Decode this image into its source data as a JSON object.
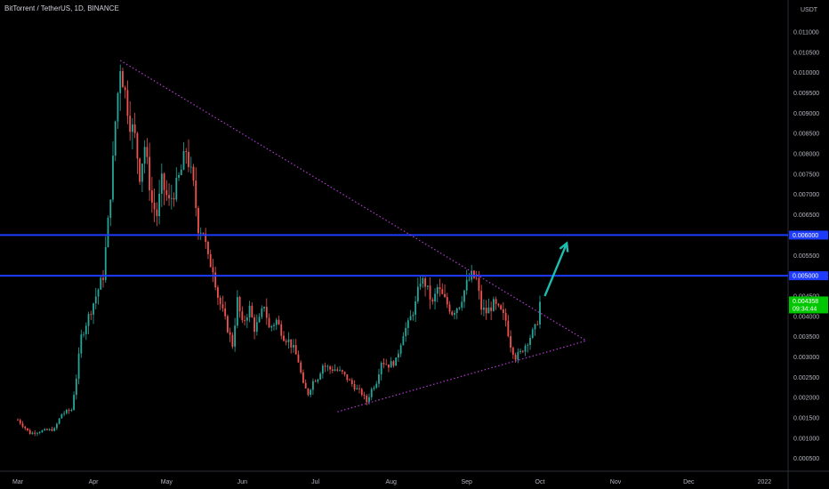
{
  "header": {
    "title": "BitTorrent / TetherUS, 1D, BINANCE"
  },
  "chart_data": {
    "type": "candlestick",
    "symbol": "BitTorrent / TetherUS, 1D, BINANCE",
    "currency_label": "USDT",
    "ylim": [
      0.0001,
      0.0117
    ],
    "yticks": [
      "0.011000",
      "0.010500",
      "0.010000",
      "0.009500",
      "0.009000",
      "0.008500",
      "0.008000",
      "0.007500",
      "0.007000",
      "0.006500",
      "0.006000",
      "0.005500",
      "0.005000",
      "0.004500",
      "0.004000",
      "0.003500",
      "0.003000",
      "0.002500",
      "0.002000",
      "0.001500",
      "0.001000",
      "0.000500"
    ],
    "ytick_values": [
      0.011,
      0.0105,
      0.01,
      0.0095,
      0.009,
      0.0085,
      0.008,
      0.0075,
      0.007,
      0.0065,
      0.006,
      0.0055,
      0.005,
      0.0045,
      0.004,
      0.0035,
      0.003,
      0.0025,
      0.002,
      0.0015,
      0.001,
      0.0005
    ],
    "xticks": [
      {
        "label": "Mar",
        "day": 0
      },
      {
        "label": "Apr",
        "day": 31
      },
      {
        "label": "May",
        "day": 61
      },
      {
        "label": "Jun",
        "day": 92
      },
      {
        "label": "Jul",
        "day": 122
      },
      {
        "label": "Aug",
        "day": 153
      },
      {
        "label": "Sep",
        "day": 184
      },
      {
        "label": "Oct",
        "day": 214
      },
      {
        "label": "Nov",
        "day": 245
      },
      {
        "label": "Dec",
        "day": 275
      },
      {
        "label": "2022",
        "day": 306
      }
    ],
    "xlim_days": [
      0,
      320
    ],
    "price_path": [
      [
        0,
        0.00145
      ],
      [
        5,
        0.00112
      ],
      [
        10,
        0.00118
      ],
      [
        15,
        0.00122
      ],
      [
        18,
        0.0016
      ],
      [
        22,
        0.0017
      ],
      [
        24,
        0.0025
      ],
      [
        26,
        0.0035
      ],
      [
        29,
        0.004
      ],
      [
        32,
        0.0045
      ],
      [
        35,
        0.005
      ],
      [
        37,
        0.0063
      ],
      [
        39,
        0.0078
      ],
      [
        40,
        0.0088
      ],
      [
        42,
        0.0102
      ],
      [
        44,
        0.0095
      ],
      [
        46,
        0.0088
      ],
      [
        48,
        0.0084
      ],
      [
        50,
        0.0075
      ],
      [
        52,
        0.0082
      ],
      [
        55,
        0.0068
      ],
      [
        57,
        0.0065
      ],
      [
        59,
        0.0073
      ],
      [
        62,
        0.0068
      ],
      [
        65,
        0.0072
      ],
      [
        67,
        0.0076
      ],
      [
        69,
        0.0081
      ],
      [
        72,
        0.0072
      ],
      [
        74,
        0.0062
      ],
      [
        76,
        0.0061
      ],
      [
        78,
        0.0054
      ],
      [
        80,
        0.0052
      ],
      [
        82,
        0.0045
      ],
      [
        84,
        0.0041
      ],
      [
        86,
        0.0037
      ],
      [
        88,
        0.0033
      ],
      [
        90,
        0.0044
      ],
      [
        92,
        0.0038
      ],
      [
        95,
        0.0042
      ],
      [
        97,
        0.0037
      ],
      [
        99,
        0.0039
      ],
      [
        101,
        0.0043
      ],
      [
        103,
        0.0037
      ],
      [
        106,
        0.0039
      ],
      [
        109,
        0.0035
      ],
      [
        111,
        0.0034
      ],
      [
        113,
        0.0032
      ],
      [
        115,
        0.0029
      ],
      [
        117,
        0.0023
      ],
      [
        119,
        0.0021
      ],
      [
        121,
        0.0024
      ],
      [
        123,
        0.0025
      ],
      [
        125,
        0.0028
      ],
      [
        128,
        0.0027
      ],
      [
        130,
        0.0027
      ],
      [
        133,
        0.0026
      ],
      [
        136,
        0.0024
      ],
      [
        139,
        0.0022
      ],
      [
        141,
        0.0021
      ],
      [
        143,
        0.0019
      ],
      [
        145,
        0.0022
      ],
      [
        147,
        0.0024
      ],
      [
        149,
        0.0029
      ],
      [
        152,
        0.0028
      ],
      [
        155,
        0.0029
      ],
      [
        158,
        0.0036
      ],
      [
        160,
        0.0038
      ],
      [
        163,
        0.0043
      ],
      [
        165,
        0.0049
      ],
      [
        167,
        0.0048
      ],
      [
        170,
        0.0043
      ],
      [
        172,
        0.0047
      ],
      [
        175,
        0.0044
      ],
      [
        178,
        0.0041
      ],
      [
        181,
        0.0043
      ],
      [
        184,
        0.0048
      ],
      [
        186,
        0.005
      ],
      [
        188,
        0.0049
      ],
      [
        190,
        0.0042
      ],
      [
        192,
        0.0041
      ],
      [
        195,
        0.0043
      ],
      [
        198,
        0.0041
      ],
      [
        200,
        0.0039
      ],
      [
        202,
        0.0033
      ],
      [
        204,
        0.003
      ],
      [
        206,
        0.0031
      ],
      [
        208,
        0.0033
      ],
      [
        210,
        0.0035
      ],
      [
        212,
        0.0037
      ],
      [
        213,
        0.0039
      ],
      [
        214,
        0.0044
      ]
    ],
    "horizontal_levels": [
      {
        "value": 0.006,
        "label": "0.006000",
        "color": "#1e3cff"
      },
      {
        "value": 0.005,
        "label": "0.005000",
        "color": "#1e3cff"
      }
    ],
    "trendlines": [
      {
        "from": [
          42,
          0.0103
        ],
        "to": [
          233,
          0.0034
        ],
        "color": "#b43cd2",
        "style": "dotted"
      },
      {
        "from": [
          131,
          0.00165
        ],
        "to": [
          233,
          0.0034
        ],
        "color": "#b43cd2",
        "style": "dotted"
      }
    ],
    "arrow": {
      "from": [
        216,
        0.0045
      ],
      "to": [
        225,
        0.0058
      ],
      "color": "#1fbcb0"
    },
    "price_label": {
      "value": "0.004358",
      "countdown": "09:34:44",
      "color": "#00c800"
    },
    "colors": {
      "up": "#26a69a",
      "down": "#ef5350",
      "bg": "#000000"
    }
  }
}
